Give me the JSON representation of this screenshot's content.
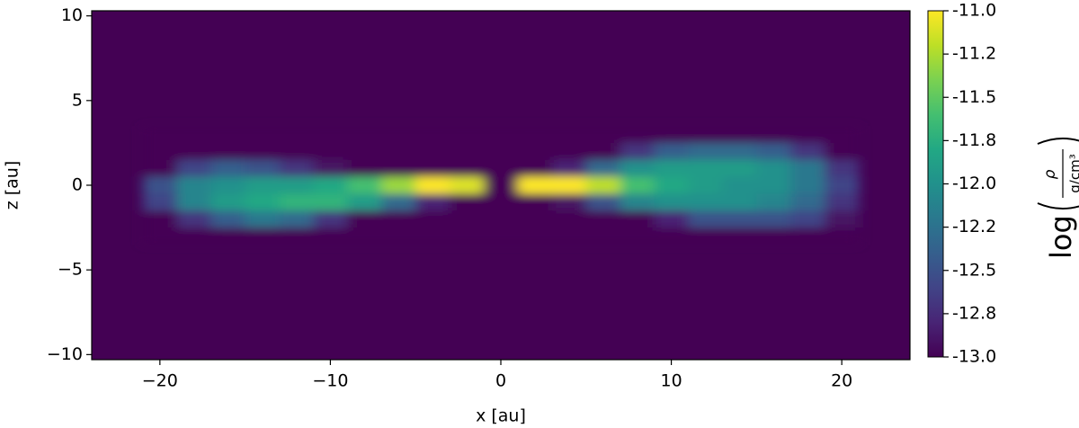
{
  "chart_data": {
    "type": "heatmap",
    "x_label": "x [au]",
    "y_label": "z [au]",
    "x": [
      -20,
      -18,
      -16,
      -14,
      -12,
      -10,
      -8,
      -6,
      -4,
      -2,
      0,
      2,
      4,
      6,
      8,
      10,
      12,
      14,
      16,
      18,
      20
    ],
    "z": [
      3,
      2,
      1,
      0,
      -1,
      -2,
      -3
    ],
    "values": [
      [
        -13,
        -13,
        -13,
        -13,
        -13,
        -13,
        -13,
        -13,
        -13,
        -13,
        -13,
        -13,
        -13,
        -13,
        -13,
        -13,
        -13,
        -13,
        -13,
        -13,
        -13
      ],
      [
        -13,
        -13,
        -13,
        -13,
        -13,
        -13,
        -13,
        -13,
        -13,
        -13,
        -13,
        -13,
        -13,
        -13,
        -12.7,
        -12.4,
        -12.3,
        -12.3,
        -12.4,
        -12.7,
        -13
      ],
      [
        -13,
        -12.6,
        -12.4,
        -12.5,
        -12.7,
        -12.9,
        -13,
        -13,
        -13,
        -13,
        -13,
        -13,
        -12.8,
        -12.3,
        -12.0,
        -11.9,
        -11.9,
        -11.9,
        -12.0,
        -12.2,
        -12.7
      ],
      [
        -12.5,
        -12.1,
        -12.0,
        -11.9,
        -11.9,
        -11.8,
        -11.6,
        -11.3,
        -11.0,
        -11.1,
        -13,
        -11.0,
        -11.0,
        -11.2,
        -11.6,
        -11.8,
        -11.9,
        -12.0,
        -12.0,
        -12.2,
        -12.6
      ],
      [
        -12.6,
        -12.1,
        -11.9,
        -11.8,
        -11.7,
        -11.7,
        -11.9,
        -12.3,
        -12.8,
        -13,
        -13,
        -13,
        -12.9,
        -12.5,
        -12.1,
        -12.0,
        -12.0,
        -12.0,
        -12.1,
        -12.3,
        -12.7
      ],
      [
        -13,
        -12.7,
        -12.4,
        -12.2,
        -12.3,
        -12.7,
        -13,
        -13,
        -13,
        -13,
        -13,
        -13,
        -13,
        -13,
        -13,
        -12.8,
        -12.5,
        -12.5,
        -12.5,
        -12.6,
        -12.9
      ],
      [
        -13,
        -13,
        -13,
        -13,
        -13,
        -13,
        -13,
        -13,
        -13,
        -13,
        -13,
        -13,
        -13,
        -13,
        -13,
        -13,
        -13,
        -13,
        -13,
        -13,
        -13
      ]
    ],
    "xlim": [
      -24,
      24
    ],
    "ylim": [
      -10.3,
      10.3
    ],
    "xticks": [
      {
        "value": -20,
        "label": "−20"
      },
      {
        "value": -10,
        "label": "−10"
      },
      0,
      10,
      20
    ],
    "yticks": [
      {
        "value": -10,
        "label": "−10"
      },
      {
        "value": -5,
        "label": "−5"
      },
      0,
      5,
      10
    ],
    "colormap": "viridis",
    "clim": [
      -13,
      -11
    ],
    "cticks": [
      {
        "value": -11,
        "label": "-11.0"
      },
      {
        "value": -11.25,
        "label": "-11.2"
      },
      {
        "value": -11.5,
        "label": "-11.5"
      },
      {
        "value": -11.75,
        "label": "-11.8"
      },
      {
        "value": -12,
        "label": "-12.0"
      },
      {
        "value": -12.25,
        "label": "-12.2"
      },
      {
        "value": -12.5,
        "label": "-12.5"
      },
      {
        "value": -12.75,
        "label": "-12.8"
      },
      {
        "value": -13,
        "label": "-13.0"
      }
    ],
    "colorbar_label": {
      "function": "log",
      "numerator": "ρ",
      "denominator": "g/cm³"
    }
  }
}
